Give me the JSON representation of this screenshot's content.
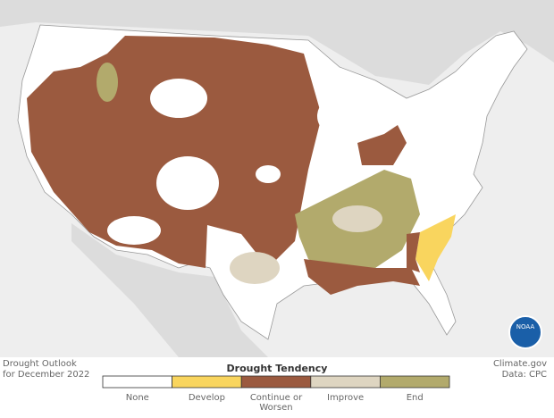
{
  "caption": {
    "line1": "Drought Outlook",
    "line2": "for December 2022"
  },
  "legend": {
    "title": "Drought Tendency",
    "items": [
      {
        "label": "None",
        "color": "#ffffff"
      },
      {
        "label": "Develop",
        "color": "#f9d55e"
      },
      {
        "label": "Continue or Worsen",
        "color": "#9b5a3f"
      },
      {
        "label": "Improve",
        "color": "#ded5c1"
      },
      {
        "label": "End",
        "color": "#b2aa6c"
      }
    ]
  },
  "credit": {
    "site": "Climate.gov",
    "source": "Data: CPC"
  },
  "logo": "NOAA"
}
